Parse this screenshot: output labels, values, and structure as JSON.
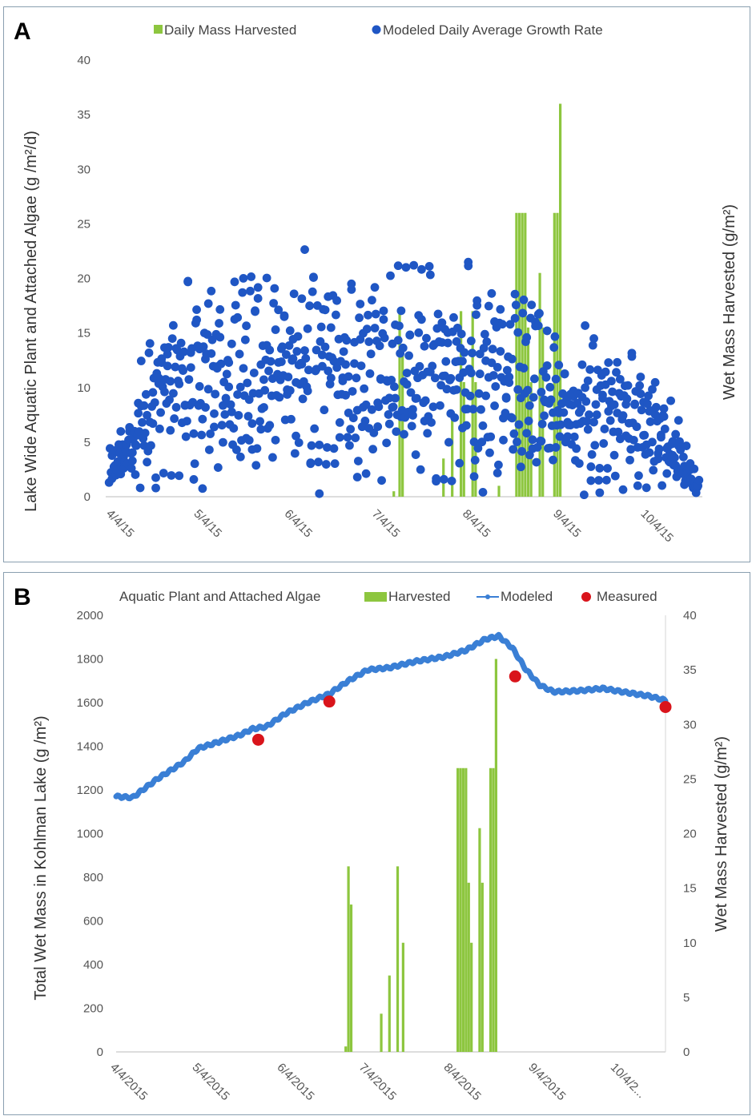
{
  "chart_data": [
    {
      "panel_label": "A",
      "type": "scatter",
      "legend": [
        "Daily Mass Harvested",
        "Modeled Daily Average Growth Rate"
      ],
      "legend_placement": "top",
      "ylabel_left": "Lake Wide Aquatic Plant and Attached Algae (g /m²/d)",
      "ylabel_right": "Wet Mass Harvested (g/m²)",
      "ylim": [
        0,
        40
      ],
      "yticks": [
        "0",
        "5",
        "10",
        "15",
        "20",
        "25",
        "30",
        "35",
        "40"
      ],
      "xticks": [
        "4/4/15",
        "5/4/15",
        "6/4/15",
        "7/4/15",
        "8/4/15",
        "9/4/15",
        "10/4/15"
      ],
      "xrange_days": [
        0,
        201
      ],
      "harvest_bars": [
        {
          "day": 97,
          "value": 0.5
        },
        {
          "day": 99,
          "value": 17
        },
        {
          "day": 100,
          "value": 14
        },
        {
          "day": 114,
          "value": 3.5
        },
        {
          "day": 117,
          "value": 7
        },
        {
          "day": 120,
          "value": 17
        },
        {
          "day": 121,
          "value": 10.5
        },
        {
          "day": 124,
          "value": 17
        },
        {
          "day": 125,
          "value": 10.5
        },
        {
          "day": 133,
          "value": 1
        },
        {
          "day": 139,
          "value": 26
        },
        {
          "day": 140,
          "value": 26
        },
        {
          "day": 141,
          "value": 26
        },
        {
          "day": 142,
          "value": 26
        },
        {
          "day": 143,
          "value": 15.5
        },
        {
          "day": 144,
          "value": 10.5
        },
        {
          "day": 147,
          "value": 20.5
        },
        {
          "day": 148,
          "value": 15.5
        },
        {
          "day": 152,
          "value": 26
        },
        {
          "day": 153,
          "value": 26
        },
        {
          "day": 154,
          "value": 36
        }
      ],
      "growth_envelope": [
        {
          "day": 0,
          "value": 5
        },
        {
          "day": 10,
          "value": 12
        },
        {
          "day": 20,
          "value": 20
        },
        {
          "day": 35,
          "value": 21
        },
        {
          "day": 50,
          "value": 22
        },
        {
          "day": 60,
          "value": 23
        },
        {
          "day": 70,
          "value": 22.5
        },
        {
          "day": 85,
          "value": 21
        },
        {
          "day": 100,
          "value": 22
        },
        {
          "day": 115,
          "value": 22
        },
        {
          "day": 130,
          "value": 21
        },
        {
          "day": 145,
          "value": 20
        },
        {
          "day": 155,
          "value": 15
        },
        {
          "day": 165,
          "value": 16
        },
        {
          "day": 175,
          "value": 15
        },
        {
          "day": 185,
          "value": 12
        },
        {
          "day": 192,
          "value": 9
        },
        {
          "day": 201,
          "value": 2
        }
      ],
      "colors": {
        "harvest": "#8dc63f",
        "growth": "#1f56c4"
      }
    },
    {
      "panel_label": "B",
      "type": "line",
      "legend": [
        "Aquatic Plant and Attached Algae",
        "Harvested",
        "Modeled",
        "Measured"
      ],
      "legend_placement": "top",
      "ylabel_left": "Total Wet Mass in Kohlman Lake (g /m²)",
      "ylabel_right": "Wet Mass Harvested (g/m²)",
      "ylim_left": [
        0,
        2000
      ],
      "ylim_right": [
        0,
        40
      ],
      "yticks_left": [
        "0",
        "200",
        "400",
        "600",
        "800",
        "1000",
        "1200",
        "1400",
        "1600",
        "1800",
        "2000"
      ],
      "yticks_right": [
        "0",
        "5",
        "10",
        "15",
        "20",
        "25",
        "30",
        "35",
        "40"
      ],
      "xticks": [
        "4/4/2015",
        "5/4/2015",
        "6/4/2015",
        "7/4/2015",
        "8/4/2015",
        "9/4/2015",
        "10/4/2..."
      ],
      "xrange_days": [
        0,
        201
      ],
      "modeled": [
        {
          "day": 0,
          "value": 1170
        },
        {
          "day": 6,
          "value": 1165
        },
        {
          "day": 15,
          "value": 1250
        },
        {
          "day": 25,
          "value": 1330
        },
        {
          "day": 30,
          "value": 1390
        },
        {
          "day": 40,
          "value": 1430
        },
        {
          "day": 45,
          "value": 1450
        },
        {
          "day": 50,
          "value": 1480
        },
        {
          "day": 55,
          "value": 1490
        },
        {
          "day": 62,
          "value": 1550
        },
        {
          "day": 70,
          "value": 1600
        },
        {
          "day": 78,
          "value": 1640
        },
        {
          "day": 85,
          "value": 1700
        },
        {
          "day": 92,
          "value": 1750
        },
        {
          "day": 100,
          "value": 1760
        },
        {
          "day": 110,
          "value": 1790
        },
        {
          "day": 120,
          "value": 1810
        },
        {
          "day": 128,
          "value": 1840
        },
        {
          "day": 135,
          "value": 1890
        },
        {
          "day": 140,
          "value": 1905
        },
        {
          "day": 145,
          "value": 1850
        },
        {
          "day": 150,
          "value": 1750
        },
        {
          "day": 155,
          "value": 1680
        },
        {
          "day": 160,
          "value": 1650
        },
        {
          "day": 162,
          "value": 1650
        },
        {
          "day": 170,
          "value": 1655
        },
        {
          "day": 178,
          "value": 1665
        },
        {
          "day": 185,
          "value": 1650
        },
        {
          "day": 195,
          "value": 1630
        },
        {
          "day": 201,
          "value": 1610
        }
      ],
      "measured": [
        {
          "day": 52,
          "value": 1430
        },
        {
          "day": 78,
          "value": 1605
        },
        {
          "day": 146,
          "value": 1720
        },
        {
          "day": 201,
          "value": 1580
        }
      ],
      "harvested": [
        {
          "day": 84,
          "value": 0.5
        },
        {
          "day": 85,
          "value": 17
        },
        {
          "day": 86,
          "value": 13.5
        },
        {
          "day": 97,
          "value": 3.5
        },
        {
          "day": 100,
          "value": 7
        },
        {
          "day": 103,
          "value": 17
        },
        {
          "day": 105,
          "value": 10
        },
        {
          "day": 125,
          "value": 26
        },
        {
          "day": 126,
          "value": 26
        },
        {
          "day": 127,
          "value": 26
        },
        {
          "day": 128,
          "value": 26
        },
        {
          "day": 129,
          "value": 15.5
        },
        {
          "day": 130,
          "value": 10
        },
        {
          "day": 133,
          "value": 20.5
        },
        {
          "day": 134,
          "value": 15.5
        },
        {
          "day": 137,
          "value": 26
        },
        {
          "day": 138,
          "value": 26
        },
        {
          "day": 139,
          "value": 36
        }
      ],
      "colors": {
        "harvested": "#8dc63f",
        "modeled": "#3a7fd5",
        "measured": "#d9141b"
      }
    }
  ]
}
